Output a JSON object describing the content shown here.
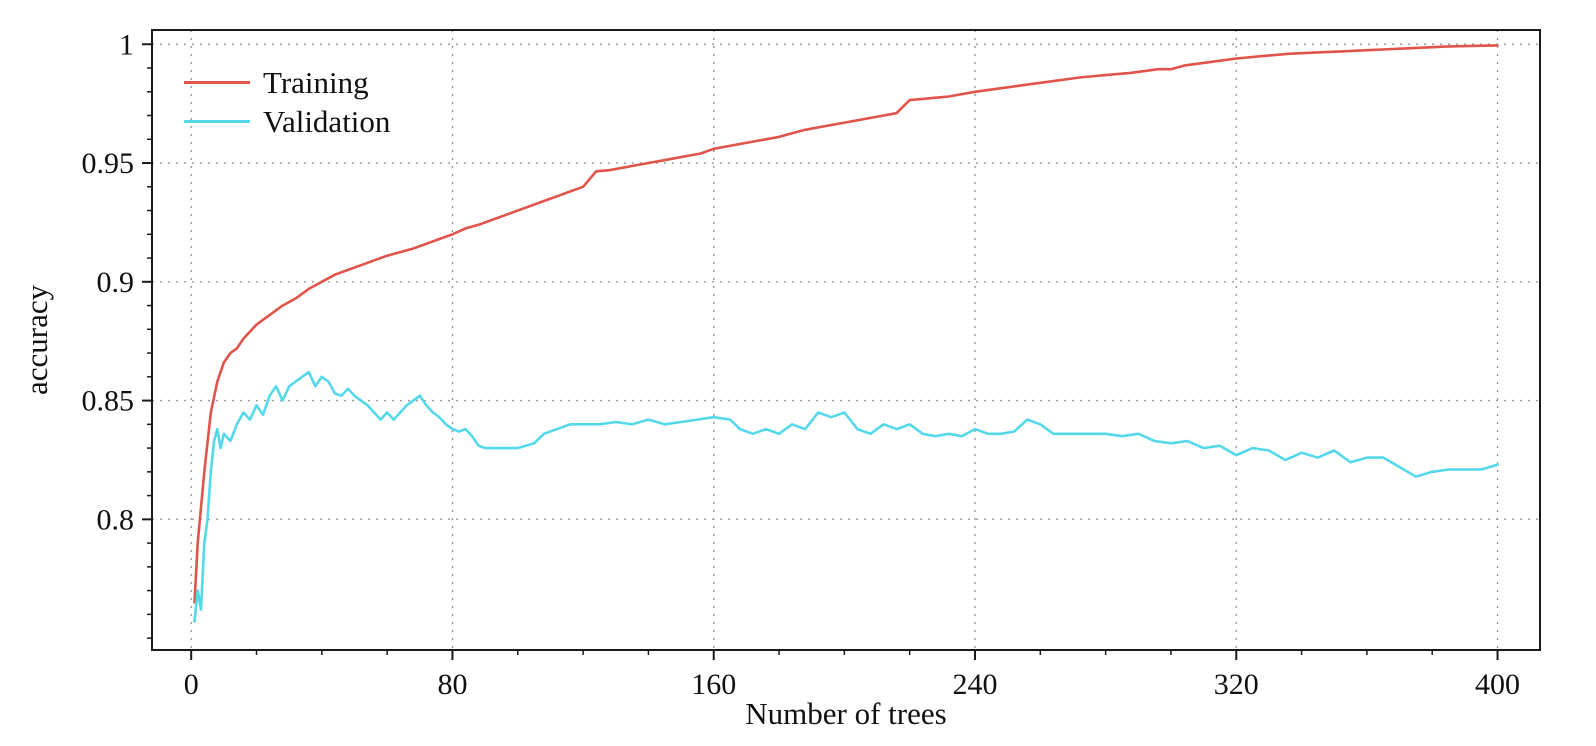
{
  "chart_data": {
    "type": "line",
    "title": "",
    "xlabel": "Number of trees",
    "ylabel": "accuracy",
    "xlim": [
      -12,
      413
    ],
    "ylim": [
      0.745,
      1.006
    ],
    "xticks": [
      0,
      80,
      160,
      240,
      320,
      400
    ],
    "xtick_labels": [
      "0",
      "80",
      "160",
      "240",
      "320",
      "400"
    ],
    "yticks": [
      0.8,
      0.85,
      0.9,
      0.95,
      1
    ],
    "ytick_labels": [
      "0.8",
      "0.85",
      "0.9",
      "0.95",
      "1"
    ],
    "x_minor_step": 20,
    "y_minor_step": 0.01,
    "grid": "dotted",
    "grid_color": "#999999",
    "axis_color": "#1a1a1a",
    "legend_position": "top-left",
    "series": [
      {
        "name": "Training",
        "color": "#e0544b",
        "x": [
          1,
          2,
          4,
          6,
          8,
          10,
          12,
          14,
          16,
          20,
          24,
          28,
          32,
          36,
          40,
          44,
          48,
          52,
          56,
          60,
          64,
          68,
          72,
          76,
          80,
          84,
          88,
          92,
          96,
          100,
          104,
          108,
          112,
          116,
          120,
          124,
          128,
          132,
          136,
          140,
          144,
          148,
          152,
          156,
          160,
          164,
          168,
          172,
          176,
          180,
          184,
          188,
          192,
          196,
          200,
          204,
          208,
          212,
          216,
          220,
          224,
          228,
          232,
          236,
          240,
          248,
          256,
          264,
          272,
          280,
          288,
          296,
          300,
          304,
          312,
          320,
          328,
          336,
          344,
          352,
          360,
          368,
          376,
          384,
          392,
          400
        ],
        "y": [
          0.765,
          0.79,
          0.82,
          0.845,
          0.858,
          0.866,
          0.87,
          0.872,
          0.876,
          0.882,
          0.886,
          0.89,
          0.893,
          0.897,
          0.9,
          0.903,
          0.905,
          0.907,
          0.909,
          0.911,
          0.9125,
          0.914,
          0.916,
          0.918,
          0.92,
          0.9225,
          0.924,
          0.926,
          0.928,
          0.93,
          0.932,
          0.934,
          0.936,
          0.938,
          0.94,
          0.9465,
          0.947,
          0.948,
          0.949,
          0.95,
          0.951,
          0.952,
          0.953,
          0.954,
          0.956,
          0.957,
          0.958,
          0.959,
          0.96,
          0.961,
          0.9625,
          0.964,
          0.965,
          0.966,
          0.967,
          0.968,
          0.969,
          0.97,
          0.971,
          0.9765,
          0.977,
          0.9775,
          0.978,
          0.979,
          0.98,
          0.9815,
          0.983,
          0.9845,
          0.986,
          0.987,
          0.988,
          0.9895,
          0.9895,
          0.991,
          0.9925,
          0.994,
          0.995,
          0.996,
          0.9965,
          0.997,
          0.9975,
          0.998,
          0.9985,
          0.999,
          0.9993,
          0.9995
        ]
      },
      {
        "name": "Validation",
        "color": "#55d8ea",
        "x": [
          1,
          2,
          3,
          4,
          5,
          6,
          7,
          8,
          9,
          10,
          12,
          14,
          16,
          18,
          20,
          22,
          24,
          26,
          28,
          30,
          32,
          34,
          36,
          38,
          40,
          42,
          44,
          46,
          48,
          50,
          52,
          54,
          56,
          58,
          60,
          62,
          64,
          66,
          68,
          70,
          72,
          74,
          76,
          78,
          80,
          82,
          84,
          86,
          88,
          90,
          95,
          100,
          105,
          108,
          112,
          116,
          120,
          125,
          130,
          135,
          140,
          145,
          150,
          155,
          160,
          165,
          168,
          172,
          176,
          180,
          184,
          188,
          192,
          196,
          200,
          204,
          208,
          212,
          216,
          220,
          224,
          228,
          232,
          236,
          240,
          244,
          248,
          252,
          256,
          260,
          264,
          268,
          272,
          276,
          280,
          285,
          290,
          295,
          300,
          305,
          310,
          315,
          320,
          325,
          330,
          335,
          340,
          345,
          350,
          355,
          360,
          365,
          370,
          375,
          380,
          385,
          390,
          395,
          400
        ],
        "y": [
          0.757,
          0.77,
          0.762,
          0.79,
          0.8,
          0.82,
          0.833,
          0.838,
          0.83,
          0.836,
          0.833,
          0.84,
          0.845,
          0.842,
          0.848,
          0.844,
          0.852,
          0.856,
          0.85,
          0.856,
          0.858,
          0.86,
          0.862,
          0.856,
          0.86,
          0.858,
          0.853,
          0.852,
          0.855,
          0.852,
          0.85,
          0.848,
          0.845,
          0.842,
          0.845,
          0.842,
          0.845,
          0.848,
          0.85,
          0.852,
          0.848,
          0.845,
          0.843,
          0.84,
          0.838,
          0.837,
          0.838,
          0.835,
          0.831,
          0.83,
          0.83,
          0.83,
          0.832,
          0.836,
          0.838,
          0.84,
          0.84,
          0.84,
          0.841,
          0.84,
          0.842,
          0.84,
          0.841,
          0.842,
          0.843,
          0.842,
          0.838,
          0.836,
          0.838,
          0.836,
          0.84,
          0.838,
          0.845,
          0.843,
          0.845,
          0.838,
          0.836,
          0.84,
          0.838,
          0.84,
          0.836,
          0.835,
          0.836,
          0.835,
          0.838,
          0.836,
          0.836,
          0.837,
          0.842,
          0.84,
          0.836,
          0.836,
          0.836,
          0.836,
          0.836,
          0.835,
          0.836,
          0.833,
          0.832,
          0.833,
          0.83,
          0.831,
          0.827,
          0.83,
          0.829,
          0.825,
          0.828,
          0.826,
          0.829,
          0.824,
          0.826,
          0.826,
          0.822,
          0.818,
          0.82,
          0.821,
          0.821,
          0.821,
          0.823
        ]
      }
    ]
  }
}
